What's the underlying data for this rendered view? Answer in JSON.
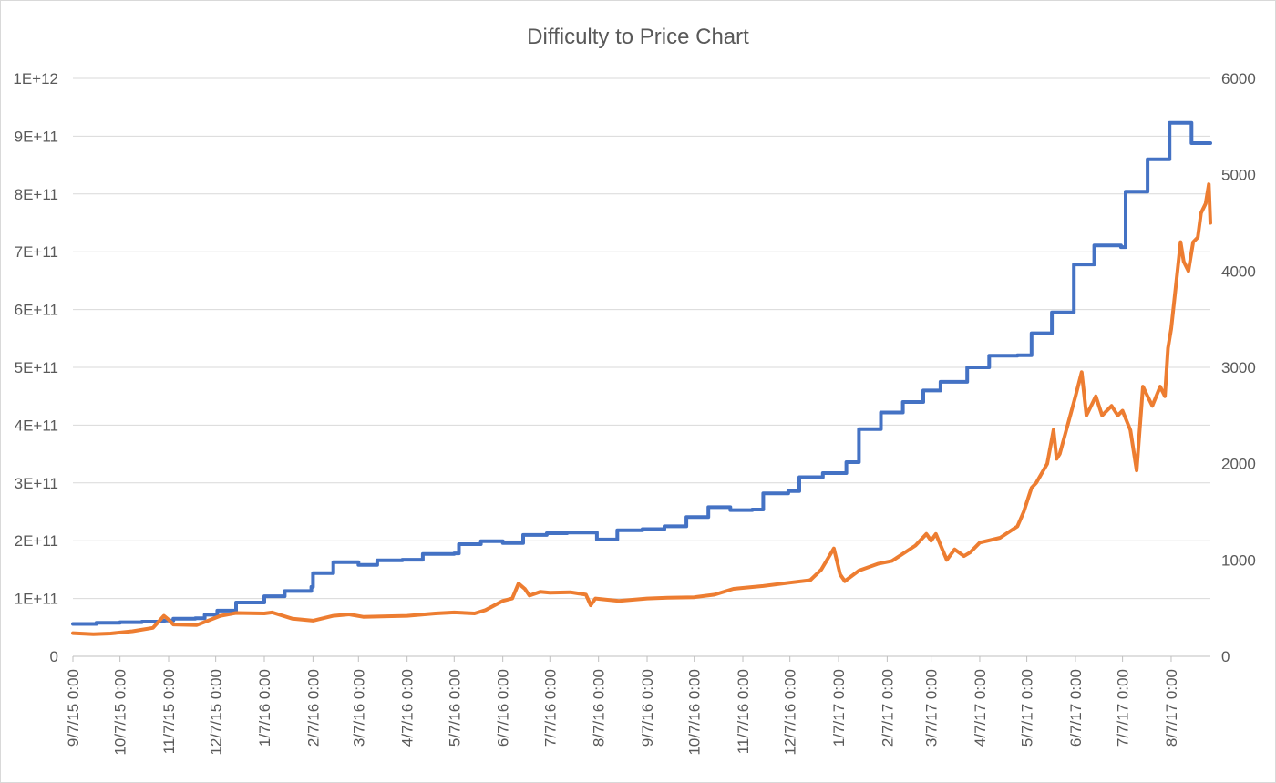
{
  "chart_data": {
    "type": "line",
    "title": "Difficulty to Price Chart",
    "xlabel": "",
    "ylabel": "",
    "y_left": {
      "range": [
        0,
        1000000000000
      ],
      "ticks": [
        0,
        100000000000,
        200000000000,
        300000000000,
        400000000000,
        500000000000,
        600000000000,
        700000000000,
        800000000000,
        900000000000,
        1000000000000
      ],
      "tick_labels": [
        "0",
        "1E+11",
        "2E+11",
        "3E+11",
        "4E+11",
        "5E+11",
        "6E+11",
        "7E+11",
        "8E+11",
        "9E+11",
        "1E+12"
      ]
    },
    "y_right": {
      "range": [
        0,
        6000
      ],
      "ticks": [
        0,
        1000,
        2000,
        3000,
        4000,
        5000,
        6000
      ],
      "tick_labels": [
        "0",
        "1000",
        "2000",
        "3000",
        "4000",
        "5000",
        "6000"
      ]
    },
    "x": {
      "range": [
        "2015-09-07",
        "2017-09-01"
      ],
      "ticks": [
        "2015-09-07",
        "2015-10-07",
        "2015-11-07",
        "2015-12-07",
        "2016-01-07",
        "2016-02-07",
        "2016-03-07",
        "2016-04-07",
        "2016-05-07",
        "2016-06-07",
        "2016-07-07",
        "2016-08-07",
        "2016-09-07",
        "2016-10-07",
        "2016-11-07",
        "2016-12-07",
        "2017-01-07",
        "2017-02-07",
        "2017-03-07",
        "2017-04-07",
        "2017-05-07",
        "2017-06-07",
        "2017-07-07",
        "2017-08-07"
      ],
      "tick_labels": [
        "9/7/15 0:00",
        "10/7/15 0:00",
        "11/7/15 0:00",
        "12/7/15 0:00",
        "1/7/16 0:00",
        "2/7/16 0:00",
        "3/7/16 0:00",
        "4/7/16 0:00",
        "5/7/16 0:00",
        "6/7/16 0:00",
        "7/7/16 0:00",
        "8/7/16 0:00",
        "9/7/16 0:00",
        "10/7/16 0:00",
        "11/7/16 0:00",
        "12/7/16 0:00",
        "1/7/17 0:00",
        "2/7/17 0:00",
        "3/7/17 0:00",
        "4/7/17 0:00",
        "5/7/17 0:00",
        "6/7/17 0:00",
        "7/7/17 0:00",
        "8/7/17 0:00"
      ]
    },
    "grid": true,
    "legend": "none",
    "series": [
      {
        "axis": "left",
        "color": "#4472c4",
        "step": true,
        "points": [
          [
            "2015-09-07",
            56000000000
          ],
          [
            "2015-09-22",
            58000000000
          ],
          [
            "2015-10-07",
            59000000000
          ],
          [
            "2015-10-21",
            60000000000
          ],
          [
            "2015-11-04",
            62000000000
          ],
          [
            "2015-11-10",
            65000000000
          ],
          [
            "2015-11-24",
            66000000000
          ],
          [
            "2015-11-30",
            72000000000
          ],
          [
            "2015-12-08",
            79000000000
          ],
          [
            "2015-12-20",
            93000000000
          ],
          [
            "2016-01-07",
            104000000000
          ],
          [
            "2016-01-20",
            113000000000
          ],
          [
            "2016-02-06",
            120000000000
          ],
          [
            "2016-02-07",
            144000000000
          ],
          [
            "2016-02-20",
            163000000000
          ],
          [
            "2016-03-07",
            158000000000
          ],
          [
            "2016-03-19",
            166000000000
          ],
          [
            "2016-04-04",
            167000000000
          ],
          [
            "2016-04-17",
            177000000000
          ],
          [
            "2016-05-07",
            178000000000
          ],
          [
            "2016-05-10",
            194000000000
          ],
          [
            "2016-05-24",
            199000000000
          ],
          [
            "2016-06-07",
            196000000000
          ],
          [
            "2016-06-20",
            210000000000
          ],
          [
            "2016-07-05",
            213000000000
          ],
          [
            "2016-07-18",
            214000000000
          ],
          [
            "2016-08-06",
            202000000000
          ],
          [
            "2016-08-19",
            218000000000
          ],
          [
            "2016-09-04",
            220000000000
          ],
          [
            "2016-09-18",
            225000000000
          ],
          [
            "2016-10-02",
            241000000000
          ],
          [
            "2016-10-16",
            258000000000
          ],
          [
            "2016-10-30",
            253000000000
          ],
          [
            "2016-11-13",
            254000000000
          ],
          [
            "2016-11-20",
            282000000000
          ],
          [
            "2016-12-06",
            286000000000
          ],
          [
            "2016-12-13",
            310000000000
          ],
          [
            "2016-12-28",
            317000000000
          ],
          [
            "2017-01-12",
            336000000000
          ],
          [
            "2017-01-20",
            393000000000
          ],
          [
            "2017-02-03",
            422000000000
          ],
          [
            "2017-02-17",
            440000000000
          ],
          [
            "2017-03-02",
            460000000000
          ],
          [
            "2017-03-13",
            475000000000
          ],
          [
            "2017-03-30",
            500000000000
          ],
          [
            "2017-04-13",
            520000000000
          ],
          [
            "2017-05-01",
            521000000000
          ],
          [
            "2017-05-10",
            559000000000
          ],
          [
            "2017-05-23",
            595000000000
          ],
          [
            "2017-06-06",
            678000000000
          ],
          [
            "2017-06-19",
            711000000000
          ],
          [
            "2017-07-06",
            708000000000
          ],
          [
            "2017-07-09",
            804000000000
          ],
          [
            "2017-07-23",
            860000000000
          ],
          [
            "2017-08-06",
            923000000000
          ],
          [
            "2017-08-20",
            888000000000
          ],
          [
            "2017-09-01",
            888000000000
          ]
        ]
      },
      {
        "axis": "right",
        "color": "#ed7d31",
        "step": false,
        "points": [
          [
            "2015-09-07",
            240
          ],
          [
            "2015-09-20",
            230
          ],
          [
            "2015-10-01",
            237
          ],
          [
            "2015-10-15",
            260
          ],
          [
            "2015-10-28",
            295
          ],
          [
            "2015-11-04",
            420
          ],
          [
            "2015-11-07",
            380
          ],
          [
            "2015-11-10",
            330
          ],
          [
            "2015-11-25",
            325
          ],
          [
            "2015-12-10",
            420
          ],
          [
            "2015-12-20",
            450
          ],
          [
            "2016-01-07",
            445
          ],
          [
            "2016-01-12",
            455
          ],
          [
            "2016-01-25",
            390
          ],
          [
            "2016-02-07",
            370
          ],
          [
            "2016-02-20",
            420
          ],
          [
            "2016-03-01",
            435
          ],
          [
            "2016-03-10",
            410
          ],
          [
            "2016-03-25",
            415
          ],
          [
            "2016-04-07",
            420
          ],
          [
            "2016-04-25",
            445
          ],
          [
            "2016-05-07",
            455
          ],
          [
            "2016-05-20",
            445
          ],
          [
            "2016-05-27",
            480
          ],
          [
            "2016-06-07",
            575
          ],
          [
            "2016-06-13",
            600
          ],
          [
            "2016-06-17",
            755
          ],
          [
            "2016-06-21",
            700
          ],
          [
            "2016-06-24",
            630
          ],
          [
            "2016-07-01",
            670
          ],
          [
            "2016-07-07",
            660
          ],
          [
            "2016-07-20",
            665
          ],
          [
            "2016-07-30",
            640
          ],
          [
            "2016-08-02",
            530
          ],
          [
            "2016-08-05",
            600
          ],
          [
            "2016-08-20",
            575
          ],
          [
            "2016-09-07",
            600
          ],
          [
            "2016-09-20",
            608
          ],
          [
            "2016-10-07",
            613
          ],
          [
            "2016-10-20",
            640
          ],
          [
            "2016-11-01",
            700
          ],
          [
            "2016-11-07",
            710
          ],
          [
            "2016-11-20",
            730
          ],
          [
            "2016-12-07",
            765
          ],
          [
            "2016-12-20",
            790
          ],
          [
            "2016-12-27",
            900
          ],
          [
            "2017-01-04",
            1120
          ],
          [
            "2017-01-08",
            850
          ],
          [
            "2017-01-11",
            780
          ],
          [
            "2017-01-20",
            890
          ],
          [
            "2017-02-01",
            960
          ],
          [
            "2017-02-10",
            990
          ],
          [
            "2017-02-25",
            1150
          ],
          [
            "2017-03-04",
            1270
          ],
          [
            "2017-03-07",
            1200
          ],
          [
            "2017-03-10",
            1270
          ],
          [
            "2017-03-17",
            1000
          ],
          [
            "2017-03-22",
            1110
          ],
          [
            "2017-03-28",
            1040
          ],
          [
            "2017-04-01",
            1080
          ],
          [
            "2017-04-07",
            1180
          ],
          [
            "2017-04-20",
            1230
          ],
          [
            "2017-05-01",
            1350
          ],
          [
            "2017-05-05",
            1500
          ],
          [
            "2017-05-10",
            1750
          ],
          [
            "2017-05-13",
            1800
          ],
          [
            "2017-05-20",
            2000
          ],
          [
            "2017-05-24",
            2350
          ],
          [
            "2017-05-26",
            2050
          ],
          [
            "2017-05-28",
            2100
          ],
          [
            "2017-06-02",
            2400
          ],
          [
            "2017-06-07",
            2700
          ],
          [
            "2017-06-11",
            2950
          ],
          [
            "2017-06-14",
            2500
          ],
          [
            "2017-06-20",
            2700
          ],
          [
            "2017-06-24",
            2500
          ],
          [
            "2017-06-30",
            2600
          ],
          [
            "2017-07-04",
            2500
          ],
          [
            "2017-07-07",
            2550
          ],
          [
            "2017-07-12",
            2350
          ],
          [
            "2017-07-16",
            1930
          ],
          [
            "2017-07-20",
            2800
          ],
          [
            "2017-07-23",
            2700
          ],
          [
            "2017-07-26",
            2600
          ],
          [
            "2017-07-31",
            2800
          ],
          [
            "2017-08-03",
            2700
          ],
          [
            "2017-08-05",
            3200
          ],
          [
            "2017-08-07",
            3400
          ],
          [
            "2017-08-11",
            4000
          ],
          [
            "2017-08-13",
            4300
          ],
          [
            "2017-08-15",
            4100
          ],
          [
            "2017-08-18",
            4000
          ],
          [
            "2017-08-21",
            4300
          ],
          [
            "2017-08-24",
            4350
          ],
          [
            "2017-08-26",
            4600
          ],
          [
            "2017-08-29",
            4700
          ],
          [
            "2017-08-31",
            4900
          ],
          [
            "2017-09-01",
            4500
          ]
        ]
      }
    ]
  }
}
